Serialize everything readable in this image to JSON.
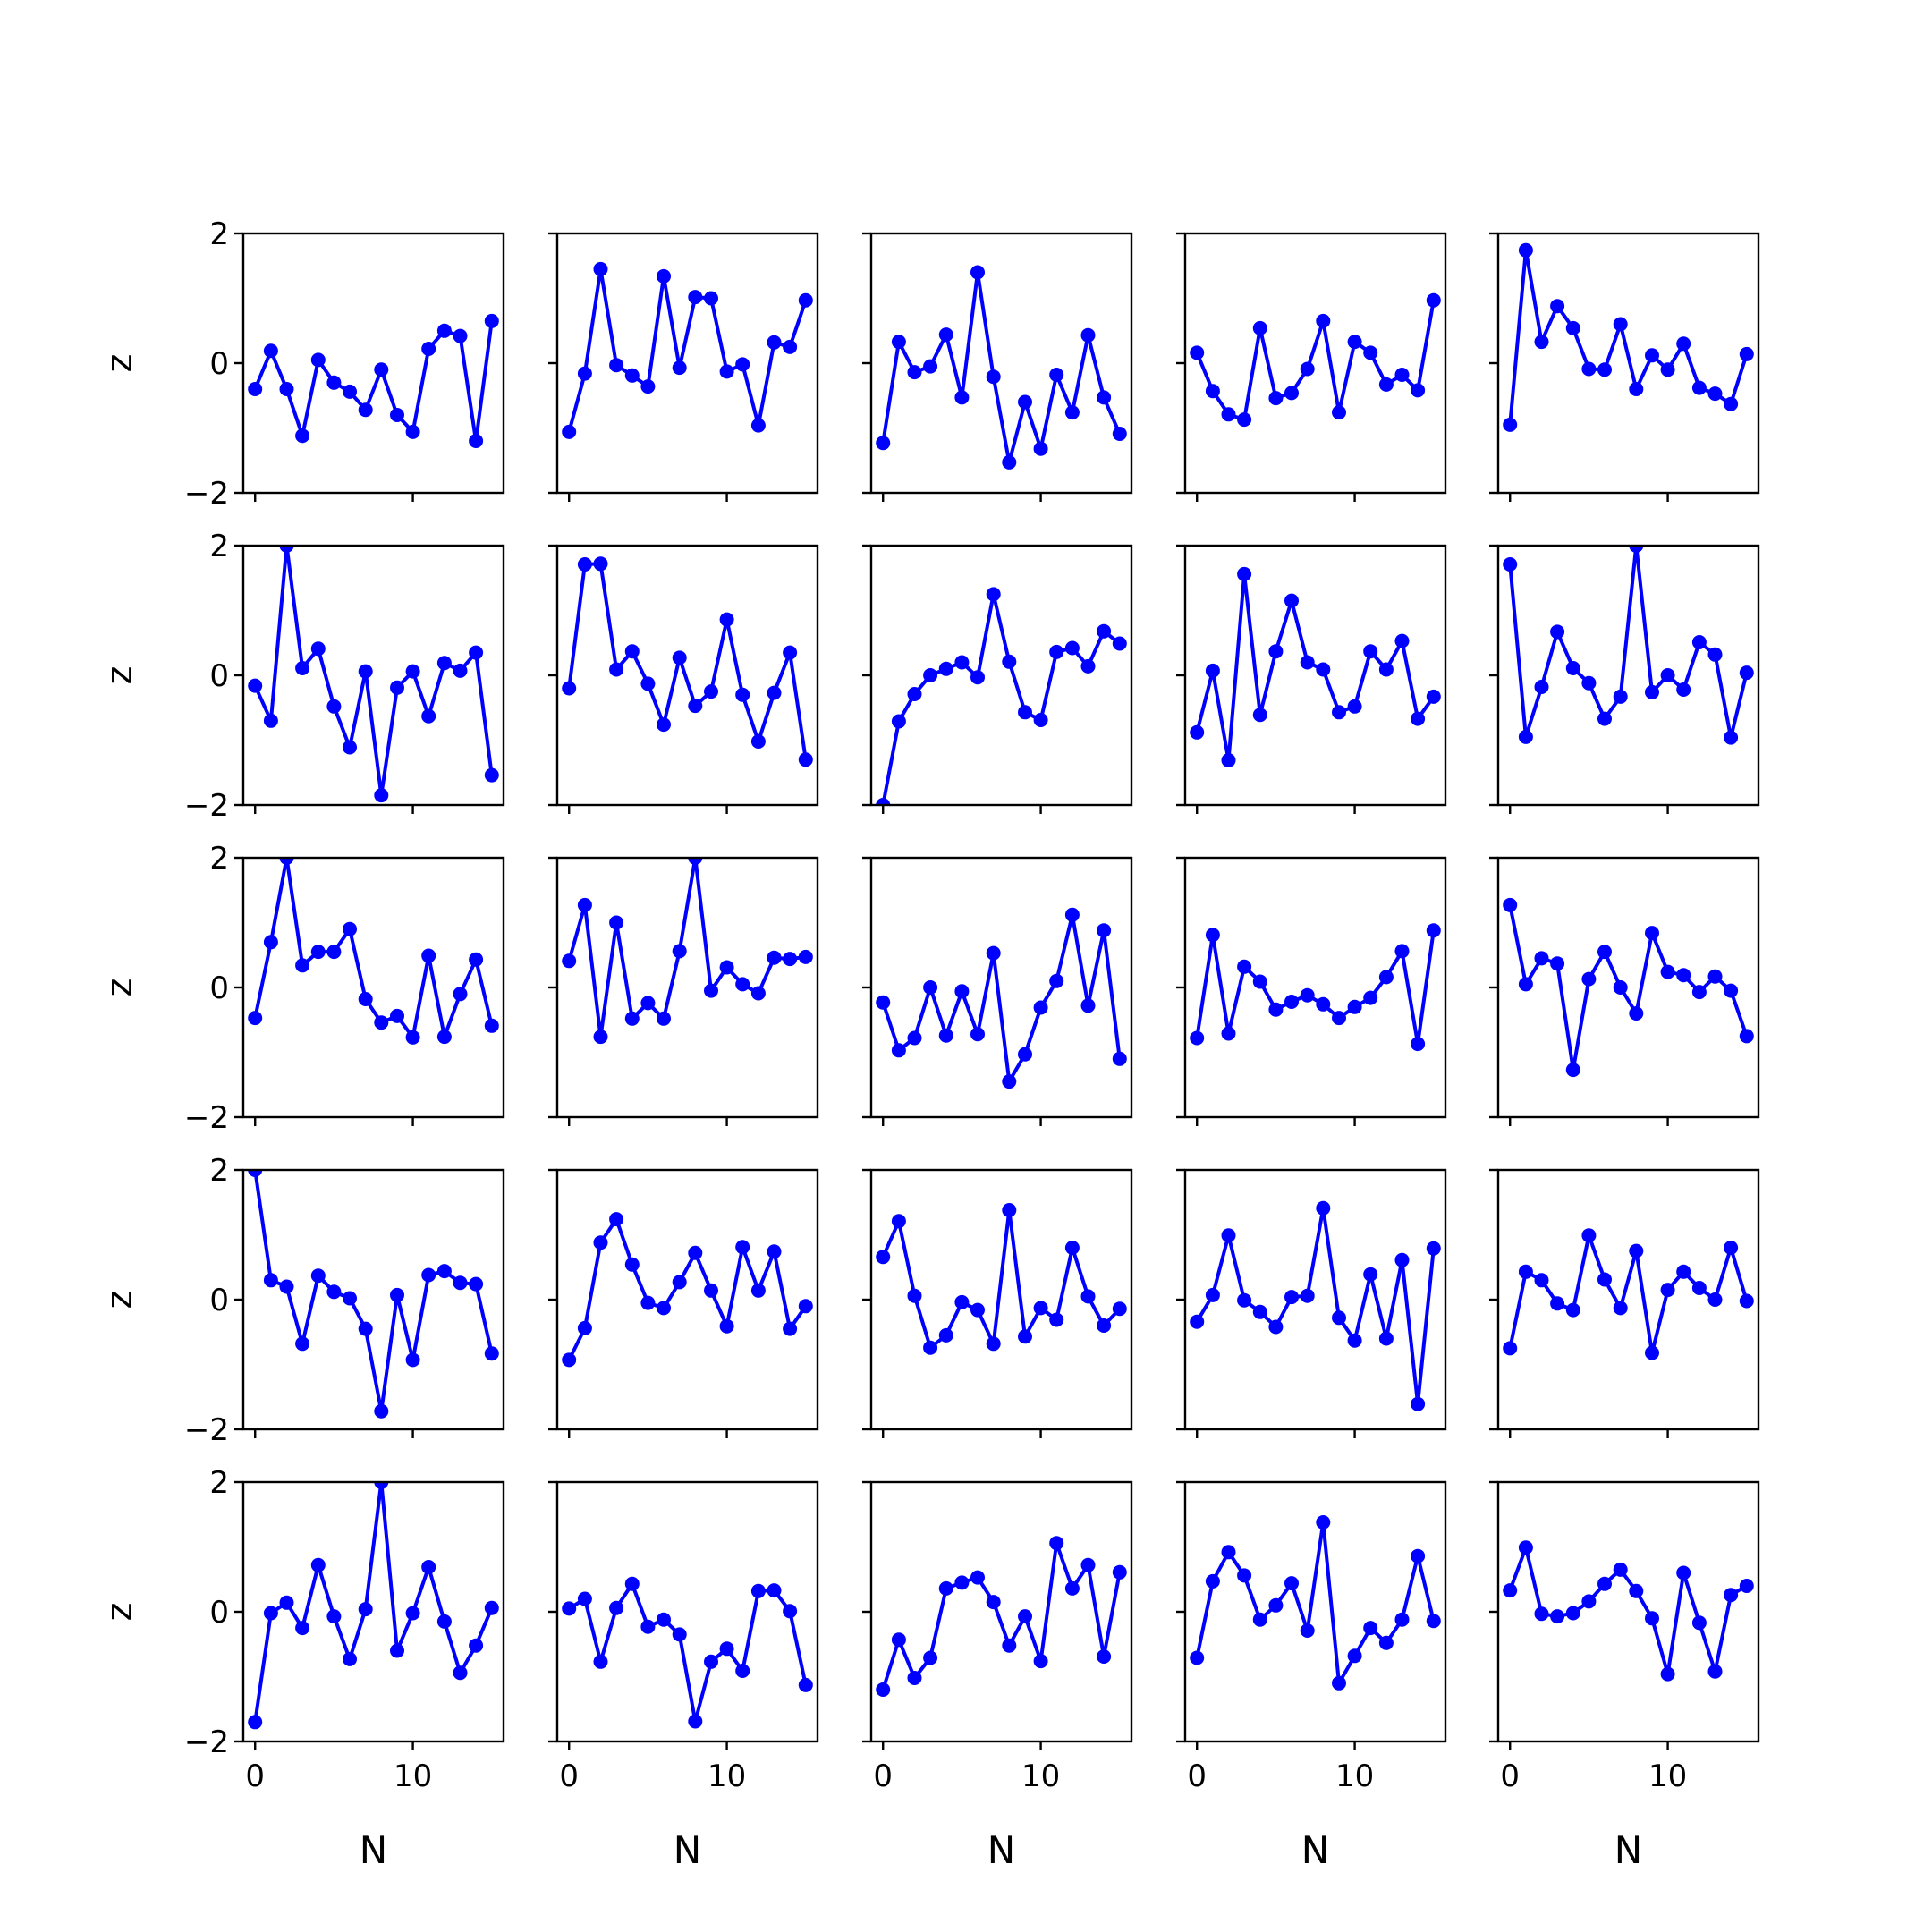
{
  "chart_data": {
    "type": "line",
    "layout": "5x5 grid of small multiples",
    "xlabel": "N",
    "ylabel": "z",
    "xlim": [
      -0.75,
      15.75
    ],
    "ylim": [
      -2,
      2
    ],
    "x_ticks": [
      0,
      10
    ],
    "x_tick_labels": [
      "0",
      "10"
    ],
    "y_ticks": [
      -2,
      0,
      2
    ],
    "y_tick_labels": [
      "−2",
      "0",
      "2"
    ],
    "x": [
      0,
      1,
      2,
      3,
      4,
      5,
      6,
      7,
      8,
      9,
      10,
      11,
      12,
      13,
      14,
      15
    ],
    "color": "#0000ff",
    "marker": "circle",
    "grid": false,
    "panels": [
      [
        [
          -0.4,
          0.19,
          -0.4,
          -1.12,
          0.05,
          -0.3,
          -0.44,
          -0.72,
          -0.1,
          -0.8,
          -1.06,
          0.22,
          0.5,
          0.42,
          -1.2,
          0.65
        ],
        [
          -1.06,
          -0.16,
          1.45,
          -0.03,
          -0.19,
          -0.36,
          1.34,
          -0.07,
          1.02,
          1.0,
          -0.13,
          -0.02,
          -0.96,
          0.32,
          0.25,
          0.97
        ],
        [
          -1.23,
          0.33,
          -0.14,
          -0.05,
          0.44,
          -0.53,
          1.4,
          -0.21,
          -1.53,
          -0.6,
          -1.32,
          -0.18,
          -0.76,
          0.43,
          -0.53,
          -1.09
        ],
        [
          0.16,
          -0.43,
          -0.79,
          -0.87,
          0.54,
          -0.54,
          -0.46,
          -0.09,
          0.65,
          -0.76,
          0.33,
          0.16,
          -0.33,
          -0.18,
          -0.42,
          0.97
        ]
      ],
      [
        [
          -0.95,
          1.74,
          0.33,
          0.88,
          0.54,
          -0.09,
          -0.1,
          0.6,
          -0.4,
          0.12,
          -0.1,
          0.3,
          -0.38,
          -0.47,
          -0.63,
          0.14
        ],
        [
          -0.16,
          -0.7,
          2.0,
          0.11,
          0.41,
          -0.48,
          -1.11,
          0.06,
          -1.85,
          -0.19,
          0.06,
          -0.63,
          0.19,
          0.07,
          0.35,
          -1.54
        ],
        [
          -0.2,
          1.71,
          1.72,
          0.09,
          0.37,
          -0.13,
          -0.76,
          0.27,
          -0.47,
          -0.25,
          0.86,
          -0.3,
          -1.02,
          -0.27,
          0.35,
          -1.3
        ],
        [
          -2.0,
          -0.71,
          -0.29,
          0.0,
          0.1,
          0.2,
          -0.03,
          1.25,
          0.21,
          -0.57,
          -0.69,
          0.36,
          0.42,
          0.14,
          0.68,
          0.49
        ]
      ],
      [
        [
          -0.88,
          0.07,
          -1.31,
          1.56,
          -0.61,
          0.37,
          1.15,
          0.2,
          0.09,
          -0.57,
          -0.48,
          0.37,
          0.09,
          0.53,
          -0.67,
          -0.33
        ],
        [
          1.71,
          -0.95,
          -0.18,
          0.67,
          0.11,
          -0.12,
          -0.67,
          -0.33,
          2.0,
          -0.26,
          0.0,
          -0.22,
          0.51,
          0.32,
          -0.96,
          0.04
        ],
        [
          -0.47,
          0.7,
          2.0,
          0.34,
          0.55,
          0.55,
          0.9,
          -0.18,
          -0.54,
          -0.44,
          -0.77,
          0.49,
          -0.76,
          -0.1,
          0.43,
          -0.59
        ],
        [
          0.41,
          1.27,
          -0.76,
          1.0,
          -0.48,
          -0.24,
          -0.48,
          0.56,
          2.0,
          -0.05,
          0.31,
          0.05,
          -0.09,
          0.46,
          0.44,
          0.47
        ]
      ],
      [
        [
          -0.23,
          -0.97,
          -0.78,
          0.0,
          -0.74,
          -0.06,
          -0.72,
          0.53,
          -1.45,
          -1.03,
          -0.31,
          0.1,
          1.12,
          -0.28,
          0.88,
          -1.1
        ],
        [
          -0.78,
          0.81,
          -0.71,
          0.32,
          0.09,
          -0.34,
          -0.22,
          -0.12,
          -0.26,
          -0.47,
          -0.3,
          -0.16,
          0.16,
          0.56,
          -0.87,
          0.88
        ],
        [
          1.27,
          0.05,
          0.45,
          0.37,
          -1.27,
          0.13,
          0.55,
          0.0,
          -0.4,
          0.84,
          0.24,
          0.19,
          -0.07,
          0.17,
          -0.05,
          -0.75
        ],
        [
          2.0,
          0.3,
          0.2,
          -0.68,
          0.37,
          0.12,
          0.02,
          -0.45,
          -1.72,
          0.07,
          -0.93,
          0.38,
          0.44,
          0.26,
          0.24,
          -0.83
        ]
      ],
      [
        [
          -0.93,
          -0.44,
          0.88,
          1.24,
          0.54,
          -0.05,
          -0.13,
          0.27,
          0.72,
          0.14,
          -0.41,
          0.81,
          0.14,
          0.74,
          -0.45,
          -0.1
        ],
        [
          0.66,
          1.21,
          0.06,
          -0.74,
          -0.55,
          -0.04,
          -0.16,
          -0.68,
          1.38,
          -0.57,
          -0.13,
          -0.31,
          0.8,
          0.05,
          -0.4,
          -0.14
        ],
        [
          -0.34,
          0.07,
          0.99,
          -0.01,
          -0.19,
          -0.42,
          0.04,
          0.06,
          1.41,
          -0.28,
          -0.63,
          0.39,
          -0.6,
          0.61,
          -1.61,
          0.79
        ],
        [
          -0.75,
          0.43,
          0.3,
          -0.06,
          -0.16,
          0.99,
          0.31,
          -0.13,
          0.75,
          -0.82,
          0.15,
          0.43,
          0.18,
          0.0,
          0.8,
          -0.02
        ]
      ],
      [
        [
          -1.7,
          -0.02,
          0.14,
          -0.25,
          0.72,
          -0.07,
          -0.73,
          0.04,
          2.0,
          -0.6,
          -0.02,
          0.69,
          -0.15,
          -0.94,
          -0.52,
          0.06
        ],
        [
          0.05,
          0.2,
          -0.77,
          0.06,
          0.43,
          -0.23,
          -0.12,
          -0.35,
          -1.69,
          -0.77,
          -0.57,
          -0.91,
          0.32,
          0.33,
          0.01,
          -1.13
        ],
        [
          -1.2,
          -0.43,
          -1.02,
          -0.71,
          0.36,
          0.45,
          0.53,
          0.15,
          -0.52,
          -0.07,
          -0.76,
          1.06,
          0.36,
          0.72,
          -0.69,
          0.61
        ],
        [
          -0.71,
          0.47,
          0.92,
          0.56,
          -0.12,
          0.1,
          0.44,
          -0.29,
          1.38,
          -1.1,
          -0.68,
          -0.25,
          -0.48,
          -0.12,
          0.86,
          -0.14
        ],
        [
          0.33,
          0.99,
          -0.03,
          -0.07,
          -0.02,
          0.16,
          0.43,
          0.65,
          0.32,
          -0.1,
          -0.96,
          0.6,
          -0.17,
          -0.92,
          0.26,
          0.4
        ]
      ]
    ]
  }
}
